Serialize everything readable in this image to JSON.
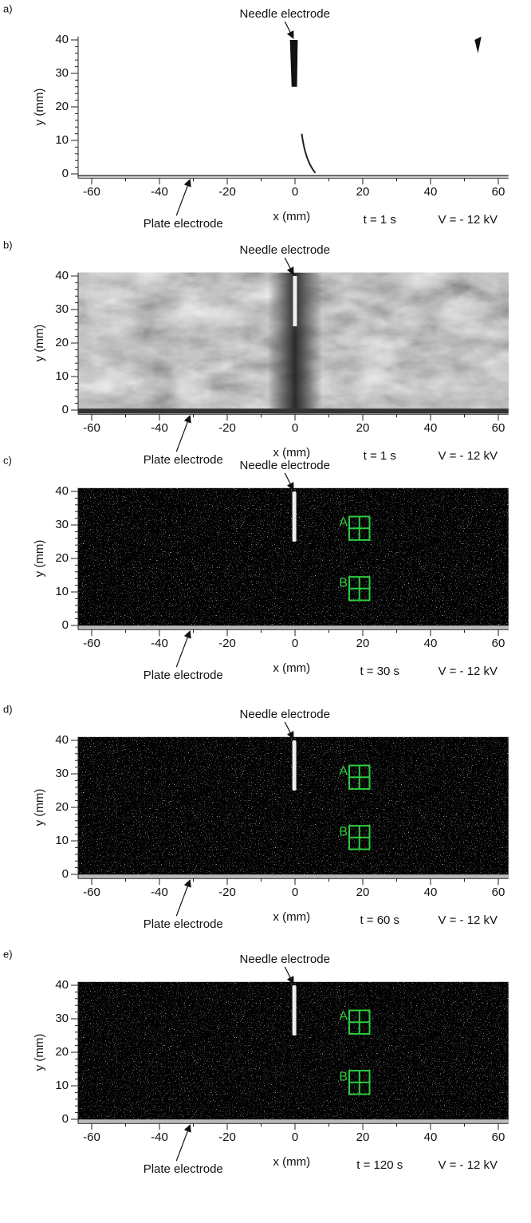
{
  "panels": [
    {
      "label": "a)",
      "needle_label": "Needle electrode",
      "plate_label": "Plate electrode",
      "x_label": "x (mm)",
      "y_label": "y (mm)",
      "time": "t = 1 s",
      "voltage": "V = - 12 kV",
      "xlim": [
        -64,
        63
      ],
      "ylim": [
        -1,
        41
      ],
      "xticks": [
        -60,
        -40,
        -20,
        0,
        20,
        40,
        60
      ],
      "yticks": [
        0,
        10,
        20,
        30,
        40
      ]
    },
    {
      "label": "b)",
      "needle_label": "Needle electrode",
      "plate_label": "Plate electrode",
      "x_label": "x (mm)",
      "y_label": "y (mm)",
      "time": "t = 1 s",
      "voltage": "V = - 12 kV",
      "xlim": [
        -64,
        63
      ],
      "ylim": [
        -1,
        41
      ],
      "xticks": [
        -60,
        -40,
        -20,
        0,
        20,
        40,
        60
      ],
      "yticks": [
        0,
        10,
        20,
        30,
        40
      ]
    },
    {
      "label": "c)",
      "needle_label": "Needle electrode",
      "plate_label": "Plate electrode",
      "x_label": "x (mm)",
      "y_label": "y (mm)",
      "time": "t = 30 s",
      "voltage": "V = - 12 kV",
      "xlim": [
        -64,
        63
      ],
      "ylim": [
        -1,
        41
      ],
      "xticks": [
        -60,
        -40,
        -20,
        0,
        20,
        40,
        60
      ],
      "yticks": [
        0,
        10,
        20,
        30,
        40
      ],
      "boxes": [
        "A",
        "B"
      ]
    },
    {
      "label": "d)",
      "needle_label": "Needle electrode",
      "plate_label": "Plate electrode",
      "x_label": "x (mm)",
      "y_label": "y (mm)",
      "time": "t = 60 s",
      "voltage": "V = - 12 kV",
      "xlim": [
        -64,
        63
      ],
      "ylim": [
        -1,
        41
      ],
      "xticks": [
        -60,
        -40,
        -20,
        0,
        20,
        40,
        60
      ],
      "yticks": [
        0,
        10,
        20,
        30,
        40
      ],
      "boxes": [
        "A",
        "B"
      ]
    },
    {
      "label": "e)",
      "needle_label": "Needle electrode",
      "plate_label": "Plate electrode",
      "x_label": "x (mm)",
      "y_label": "y (mm)",
      "time": "t = 120 s",
      "voltage": "V = - 12 kV",
      "xlim": [
        -64,
        63
      ],
      "ylim": [
        -1,
        41
      ],
      "xticks": [
        -60,
        -40,
        -20,
        0,
        20,
        40,
        60
      ],
      "yticks": [
        0,
        10,
        20,
        30,
        40
      ],
      "boxes": [
        "A",
        "B"
      ]
    }
  ]
}
